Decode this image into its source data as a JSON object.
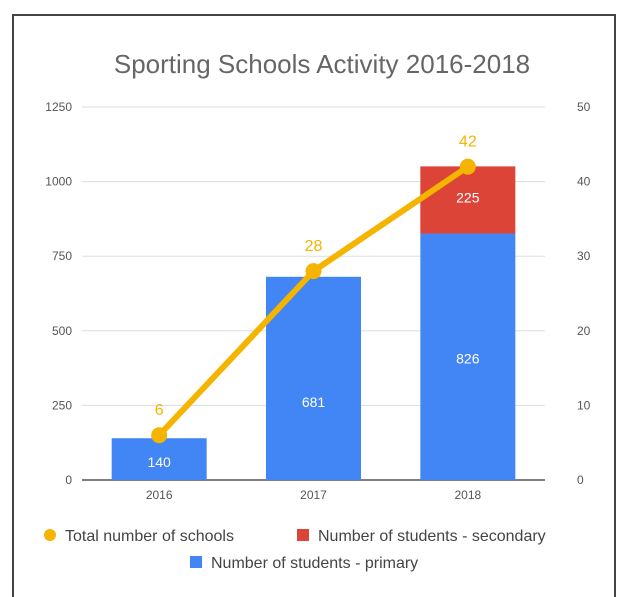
{
  "chart_data": {
    "type": "bar",
    "title": "Sporting Schools Activity 2016-2018",
    "categories": [
      "2016",
      "2017",
      "2018"
    ],
    "left_axis": {
      "ylim": [
        0,
        1250
      ],
      "ticks": [
        "0",
        "250",
        "500",
        "750",
        "1000",
        "1250"
      ]
    },
    "right_axis": {
      "ylim": [
        0,
        50
      ],
      "ticks": [
        "0",
        "10",
        "20",
        "30",
        "40",
        "50"
      ]
    },
    "grid": true,
    "legend_position": "bottom",
    "series": [
      {
        "name": "Number of students - primary",
        "kind": "bar",
        "stacked": true,
        "axis": "left",
        "color": "#4285F4",
        "values": [
          140,
          681,
          826
        ],
        "labels": [
          "140",
          "681",
          "826"
        ]
      },
      {
        "name": "Number of students - secondary",
        "kind": "bar",
        "stacked": true,
        "axis": "left",
        "color": "#DB4437",
        "values": [
          0,
          0,
          225
        ],
        "labels": [
          "",
          "",
          "225"
        ]
      },
      {
        "name": "Total number of schools",
        "kind": "line",
        "axis": "right",
        "color": "#F4B400",
        "values": [
          6,
          28,
          42
        ],
        "labels": [
          "6",
          "28",
          "42"
        ]
      }
    ],
    "legend": [
      {
        "name": "Total number of schools",
        "color": "#F4B400",
        "marker": "circle"
      },
      {
        "name": "Number of students - secondary",
        "color": "#DB4437",
        "marker": "square"
      },
      {
        "name": "Number of students - primary",
        "color": "#4285F4",
        "marker": "square"
      }
    ]
  }
}
